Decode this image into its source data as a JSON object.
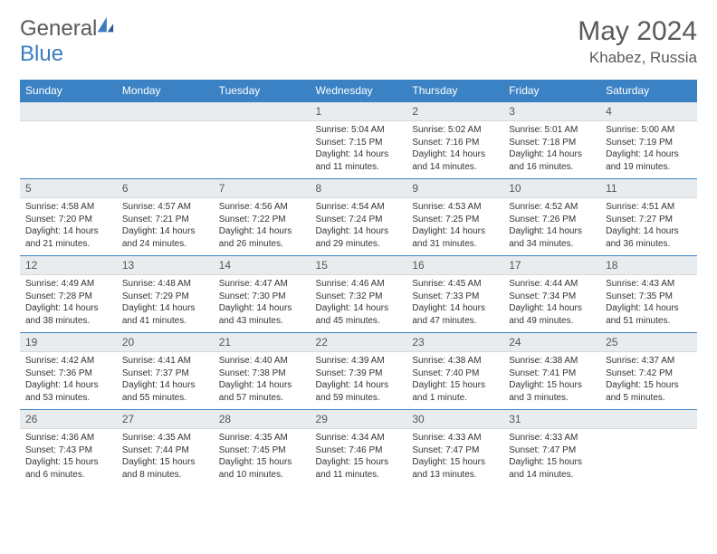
{
  "brand": {
    "general": "General",
    "blue": "Blue"
  },
  "title": "May 2024",
  "location": "Khabez, Russia",
  "colors": {
    "header_bg": "#3b82c4",
    "header_text": "#ffffff",
    "daynum_bg": "#e9ecef",
    "border": "#3b82c4",
    "text": "#333333",
    "brand_gray": "#5a5a5a",
    "brand_blue": "#3b7bbf"
  },
  "weekdays": [
    "Sunday",
    "Monday",
    "Tuesday",
    "Wednesday",
    "Thursday",
    "Friday",
    "Saturday"
  ],
  "weeks": [
    [
      {
        "empty": true
      },
      {
        "empty": true
      },
      {
        "empty": true
      },
      {
        "day": "1",
        "sunrise": "Sunrise: 5:04 AM",
        "sunset": "Sunset: 7:15 PM",
        "daylight": "Daylight: 14 hours and 11 minutes."
      },
      {
        "day": "2",
        "sunrise": "Sunrise: 5:02 AM",
        "sunset": "Sunset: 7:16 PM",
        "daylight": "Daylight: 14 hours and 14 minutes."
      },
      {
        "day": "3",
        "sunrise": "Sunrise: 5:01 AM",
        "sunset": "Sunset: 7:18 PM",
        "daylight": "Daylight: 14 hours and 16 minutes."
      },
      {
        "day": "4",
        "sunrise": "Sunrise: 5:00 AM",
        "sunset": "Sunset: 7:19 PM",
        "daylight": "Daylight: 14 hours and 19 minutes."
      }
    ],
    [
      {
        "day": "5",
        "sunrise": "Sunrise: 4:58 AM",
        "sunset": "Sunset: 7:20 PM",
        "daylight": "Daylight: 14 hours and 21 minutes."
      },
      {
        "day": "6",
        "sunrise": "Sunrise: 4:57 AM",
        "sunset": "Sunset: 7:21 PM",
        "daylight": "Daylight: 14 hours and 24 minutes."
      },
      {
        "day": "7",
        "sunrise": "Sunrise: 4:56 AM",
        "sunset": "Sunset: 7:22 PM",
        "daylight": "Daylight: 14 hours and 26 minutes."
      },
      {
        "day": "8",
        "sunrise": "Sunrise: 4:54 AM",
        "sunset": "Sunset: 7:24 PM",
        "daylight": "Daylight: 14 hours and 29 minutes."
      },
      {
        "day": "9",
        "sunrise": "Sunrise: 4:53 AM",
        "sunset": "Sunset: 7:25 PM",
        "daylight": "Daylight: 14 hours and 31 minutes."
      },
      {
        "day": "10",
        "sunrise": "Sunrise: 4:52 AM",
        "sunset": "Sunset: 7:26 PM",
        "daylight": "Daylight: 14 hours and 34 minutes."
      },
      {
        "day": "11",
        "sunrise": "Sunrise: 4:51 AM",
        "sunset": "Sunset: 7:27 PM",
        "daylight": "Daylight: 14 hours and 36 minutes."
      }
    ],
    [
      {
        "day": "12",
        "sunrise": "Sunrise: 4:49 AM",
        "sunset": "Sunset: 7:28 PM",
        "daylight": "Daylight: 14 hours and 38 minutes."
      },
      {
        "day": "13",
        "sunrise": "Sunrise: 4:48 AM",
        "sunset": "Sunset: 7:29 PM",
        "daylight": "Daylight: 14 hours and 41 minutes."
      },
      {
        "day": "14",
        "sunrise": "Sunrise: 4:47 AM",
        "sunset": "Sunset: 7:30 PM",
        "daylight": "Daylight: 14 hours and 43 minutes."
      },
      {
        "day": "15",
        "sunrise": "Sunrise: 4:46 AM",
        "sunset": "Sunset: 7:32 PM",
        "daylight": "Daylight: 14 hours and 45 minutes."
      },
      {
        "day": "16",
        "sunrise": "Sunrise: 4:45 AM",
        "sunset": "Sunset: 7:33 PM",
        "daylight": "Daylight: 14 hours and 47 minutes."
      },
      {
        "day": "17",
        "sunrise": "Sunrise: 4:44 AM",
        "sunset": "Sunset: 7:34 PM",
        "daylight": "Daylight: 14 hours and 49 minutes."
      },
      {
        "day": "18",
        "sunrise": "Sunrise: 4:43 AM",
        "sunset": "Sunset: 7:35 PM",
        "daylight": "Daylight: 14 hours and 51 minutes."
      }
    ],
    [
      {
        "day": "19",
        "sunrise": "Sunrise: 4:42 AM",
        "sunset": "Sunset: 7:36 PM",
        "daylight": "Daylight: 14 hours and 53 minutes."
      },
      {
        "day": "20",
        "sunrise": "Sunrise: 4:41 AM",
        "sunset": "Sunset: 7:37 PM",
        "daylight": "Daylight: 14 hours and 55 minutes."
      },
      {
        "day": "21",
        "sunrise": "Sunrise: 4:40 AM",
        "sunset": "Sunset: 7:38 PM",
        "daylight": "Daylight: 14 hours and 57 minutes."
      },
      {
        "day": "22",
        "sunrise": "Sunrise: 4:39 AM",
        "sunset": "Sunset: 7:39 PM",
        "daylight": "Daylight: 14 hours and 59 minutes."
      },
      {
        "day": "23",
        "sunrise": "Sunrise: 4:38 AM",
        "sunset": "Sunset: 7:40 PM",
        "daylight": "Daylight: 15 hours and 1 minute."
      },
      {
        "day": "24",
        "sunrise": "Sunrise: 4:38 AM",
        "sunset": "Sunset: 7:41 PM",
        "daylight": "Daylight: 15 hours and 3 minutes."
      },
      {
        "day": "25",
        "sunrise": "Sunrise: 4:37 AM",
        "sunset": "Sunset: 7:42 PM",
        "daylight": "Daylight: 15 hours and 5 minutes."
      }
    ],
    [
      {
        "day": "26",
        "sunrise": "Sunrise: 4:36 AM",
        "sunset": "Sunset: 7:43 PM",
        "daylight": "Daylight: 15 hours and 6 minutes."
      },
      {
        "day": "27",
        "sunrise": "Sunrise: 4:35 AM",
        "sunset": "Sunset: 7:44 PM",
        "daylight": "Daylight: 15 hours and 8 minutes."
      },
      {
        "day": "28",
        "sunrise": "Sunrise: 4:35 AM",
        "sunset": "Sunset: 7:45 PM",
        "daylight": "Daylight: 15 hours and 10 minutes."
      },
      {
        "day": "29",
        "sunrise": "Sunrise: 4:34 AM",
        "sunset": "Sunset: 7:46 PM",
        "daylight": "Daylight: 15 hours and 11 minutes."
      },
      {
        "day": "30",
        "sunrise": "Sunrise: 4:33 AM",
        "sunset": "Sunset: 7:47 PM",
        "daylight": "Daylight: 15 hours and 13 minutes."
      },
      {
        "day": "31",
        "sunrise": "Sunrise: 4:33 AM",
        "sunset": "Sunset: 7:47 PM",
        "daylight": "Daylight: 15 hours and 14 minutes."
      },
      {
        "empty": true
      }
    ]
  ]
}
